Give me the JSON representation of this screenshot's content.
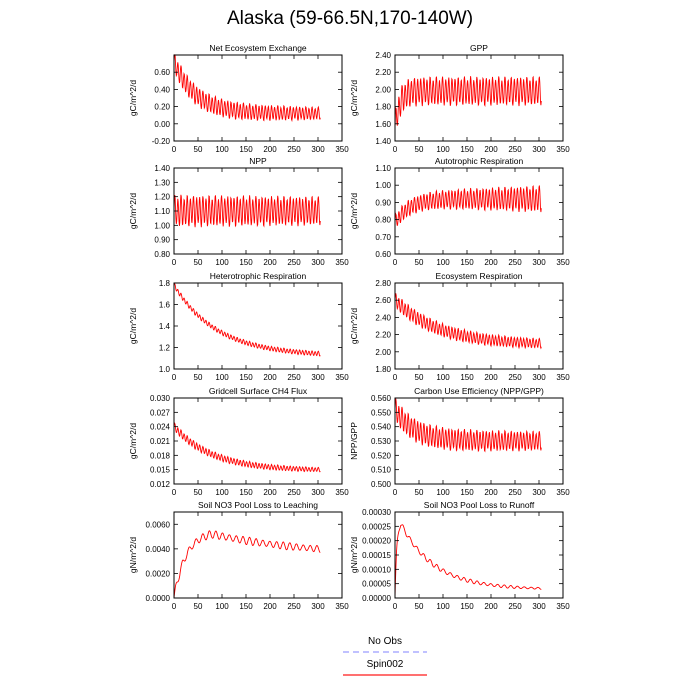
{
  "figure": {
    "title": "Alaska (59-66.5N,170-140W)",
    "legend": [
      {
        "name": "No Obs",
        "color": "#9a9cff",
        "dash": true
      },
      {
        "name": "Spin002",
        "color": "#ff1a1a",
        "dash": false
      }
    ]
  },
  "chart_data": [
    {
      "type": "line",
      "title": "Net Ecosystem Exchange",
      "ylabel": "gC/m^2/d",
      "xlim": [
        0,
        350
      ],
      "xticks": [
        0,
        50,
        100,
        150,
        200,
        250,
        300,
        350
      ],
      "ylim": [
        -0.2,
        0.8
      ],
      "yticks": [
        "-0.20",
        "0.00",
        "0.20",
        "0.40",
        "0.60"
      ],
      "series": [
        {
          "name": "Spin002",
          "color": "#ff0000",
          "x_range": [
            0,
            305
          ],
          "start": 0.72,
          "end": 0.12,
          "decay": 45,
          "amp_start": 0.22,
          "amp_end": 0.13,
          "period": 6.5
        }
      ]
    },
    {
      "type": "line",
      "title": "GPP",
      "ylabel": "gC/m^2/d",
      "xlim": [
        0,
        350
      ],
      "xticks": [
        0,
        50,
        100,
        150,
        200,
        250,
        300,
        350
      ],
      "ylim": [
        1.4,
        2.4
      ],
      "yticks": [
        "1.40",
        "1.60",
        "1.80",
        "2.00",
        "2.20",
        "2.40"
      ],
      "series": [
        {
          "name": "Spin002",
          "color": "#ff0000",
          "x_range": [
            0,
            305
          ],
          "start": 1.55,
          "end": 1.98,
          "decay": 10,
          "amp_start": 0.3,
          "amp_end": 0.3,
          "period": 6.5
        }
      ]
    },
    {
      "type": "line",
      "title": "NPP",
      "ylabel": "gC/m^2/d",
      "xlim": [
        0,
        350
      ],
      "xticks": [
        0,
        50,
        100,
        150,
        200,
        250,
        300,
        350
      ],
      "ylim": [
        0.8,
        1.4
      ],
      "yticks": [
        "0.80",
        "0.90",
        "1.00",
        "1.10",
        "1.20",
        "1.30",
        "1.40"
      ],
      "series": [
        {
          "name": "Spin002",
          "color": "#ff0000",
          "x_range": [
            0,
            305
          ],
          "start": 1.1,
          "end": 1.1,
          "decay": 10,
          "amp_start": 0.2,
          "amp_end": 0.18,
          "period": 6.5
        }
      ]
    },
    {
      "type": "line",
      "title": "Autotrophic Respiration",
      "ylabel": "gC/m^2/d",
      "xlim": [
        0,
        350
      ],
      "xticks": [
        0,
        50,
        100,
        150,
        200,
        250,
        300,
        350
      ],
      "ylim": [
        0.6,
        1.1
      ],
      "yticks": [
        "0.60",
        "0.70",
        "0.80",
        "0.90",
        "1.00",
        "1.10"
      ],
      "series": [
        {
          "name": "Spin002",
          "color": "#ff0000",
          "x_range": [
            0,
            305
          ],
          "start": 0.78,
          "end": 0.92,
          "decay": 30,
          "amp_start": 0.08,
          "amp_end": 0.14,
          "period": 6.5
        }
      ]
    },
    {
      "type": "line",
      "title": "Heterotrophic Respiration",
      "ylabel": "gC/m^2/d",
      "xlim": [
        0,
        350
      ],
      "xticks": [
        0,
        50,
        100,
        150,
        200,
        250,
        300,
        350
      ],
      "ylim": [
        1.0,
        1.8
      ],
      "yticks": [
        "1.0",
        "1.2",
        "1.4",
        "1.6",
        "1.8"
      ],
      "series": [
        {
          "name": "Spin002",
          "color": "#ff0000",
          "x_range": [
            0,
            305
          ],
          "start": 1.78,
          "end": 1.12,
          "decay": 90,
          "amp_start": 0.04,
          "amp_end": 0.04,
          "period": 6.5
        }
      ]
    },
    {
      "type": "line",
      "title": "Ecosystem Respiration",
      "ylabel": "gC/m^2/d",
      "xlim": [
        0,
        350
      ],
      "xticks": [
        0,
        50,
        100,
        150,
        200,
        250,
        300,
        350
      ],
      "ylim": [
        1.8,
        2.8
      ],
      "yticks": [
        "1.80",
        "2.00",
        "2.20",
        "2.40",
        "2.60",
        "2.80"
      ],
      "series": [
        {
          "name": "Spin002",
          "color": "#ff0000",
          "x_range": [
            0,
            305
          ],
          "start": 2.6,
          "end": 2.08,
          "decay": 90,
          "amp_start": 0.16,
          "amp_end": 0.1,
          "period": 6.5
        }
      ]
    },
    {
      "type": "line",
      "title": "Gridcell Surface CH4 Flux",
      "ylabel": "gC/m^2/d",
      "xlim": [
        0,
        350
      ],
      "xticks": [
        0,
        50,
        100,
        150,
        200,
        250,
        300,
        350
      ],
      "ylim": [
        0.012,
        0.03
      ],
      "yticks": [
        "0.012",
        "0.015",
        "0.018",
        "0.021",
        "0.024",
        "0.027",
        "0.030"
      ],
      "series": [
        {
          "name": "Spin002",
          "color": "#ff0000",
          "x_range": [
            0,
            305
          ],
          "start": 0.024,
          "end": 0.0148,
          "decay": 80,
          "amp_start": 0.0015,
          "amp_end": 0.0008,
          "period": 6.5
        }
      ]
    },
    {
      "type": "line",
      "title": "Carbon Use Efficiency (NPP/GPP)",
      "ylabel": "NPP/GPP",
      "xlim": [
        0,
        350
      ],
      "xticks": [
        0,
        50,
        100,
        150,
        200,
        250,
        300,
        350
      ],
      "ylim": [
        0.5,
        0.56
      ],
      "yticks": [
        "0.500",
        "0.510",
        "0.520",
        "0.530",
        "0.540",
        "0.550",
        "0.560"
      ],
      "series": [
        {
          "name": "Spin002",
          "color": "#ff0000",
          "x_range": [
            0,
            305
          ],
          "start": 0.552,
          "end": 0.53,
          "decay": 40,
          "amp_start": 0.015,
          "amp_end": 0.012,
          "period": 6.5
        }
      ]
    },
    {
      "type": "line",
      "title": "Soil NO3 Pool Loss to Leaching",
      "ylabel": "gN/m^2/d",
      "xlim": [
        0,
        350
      ],
      "xticks": [
        0,
        50,
        100,
        150,
        200,
        250,
        300,
        350
      ],
      "ylim": [
        0,
        0.007
      ],
      "yticks": [
        "0.0000",
        "0.0020",
        "0.0040",
        "0.0060"
      ],
      "series": [
        {
          "name": "Spin002",
          "color": "#ff0000",
          "x_range": [
            0,
            305
          ],
          "start": 0.0,
          "end": 0.0034,
          "decay": 1,
          "hump": {
            "peak": 0.0052,
            "peak_x": 80,
            "rise": 25,
            "fall": 200
          },
          "amp_start": 0.0006,
          "amp_end": 0.0005,
          "period": 14
        }
      ]
    },
    {
      "type": "line",
      "title": "Soil NO3 Pool Loss to Runoff",
      "ylabel": "gN/m^2/d",
      "xlim": [
        0,
        350
      ],
      "xticks": [
        0,
        50,
        100,
        150,
        200,
        250,
        300,
        350
      ],
      "ylim": [
        0,
        0.0003
      ],
      "yticks": [
        "0.00000",
        "0.00005",
        "0.00010",
        "0.00015",
        "0.00020",
        "0.00025",
        "0.00030"
      ],
      "series": [
        {
          "name": "Spin002",
          "color": "#ff0000",
          "x_range": [
            0,
            305
          ],
          "start": 0.0,
          "end": 3e-05,
          "decay": 1,
          "hump": {
            "peak": 0.00026,
            "peak_x": 12,
            "rise": 4,
            "fall": 70
          },
          "amp_start": 1.8e-05,
          "amp_end": 6e-06,
          "period": 14
        }
      ]
    }
  ]
}
